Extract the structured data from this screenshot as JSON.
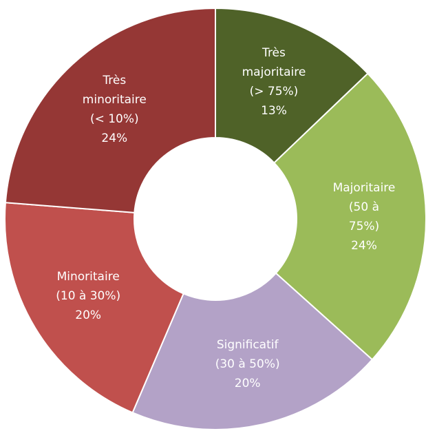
{
  "chart_data": {
    "type": "donut",
    "categories": [
      "Très\nmajoritaire\n(> 75%)",
      "Majoritaire\n(50 à 75%)",
      "Significatif\n(30 à 50%)",
      "Minoritaire\n(10 à 30%)",
      "Très\nminoritaire\n(< 10%)"
    ],
    "values": [
      13,
      24,
      20,
      20,
      24
    ],
    "value_labels": [
      "13%",
      "24%",
      "20%",
      "20%",
      "24%"
    ],
    "colors": [
      "#4f6228",
      "#9bbb59",
      "#b3a2c7",
      "#c0504d",
      "#953735"
    ]
  }
}
